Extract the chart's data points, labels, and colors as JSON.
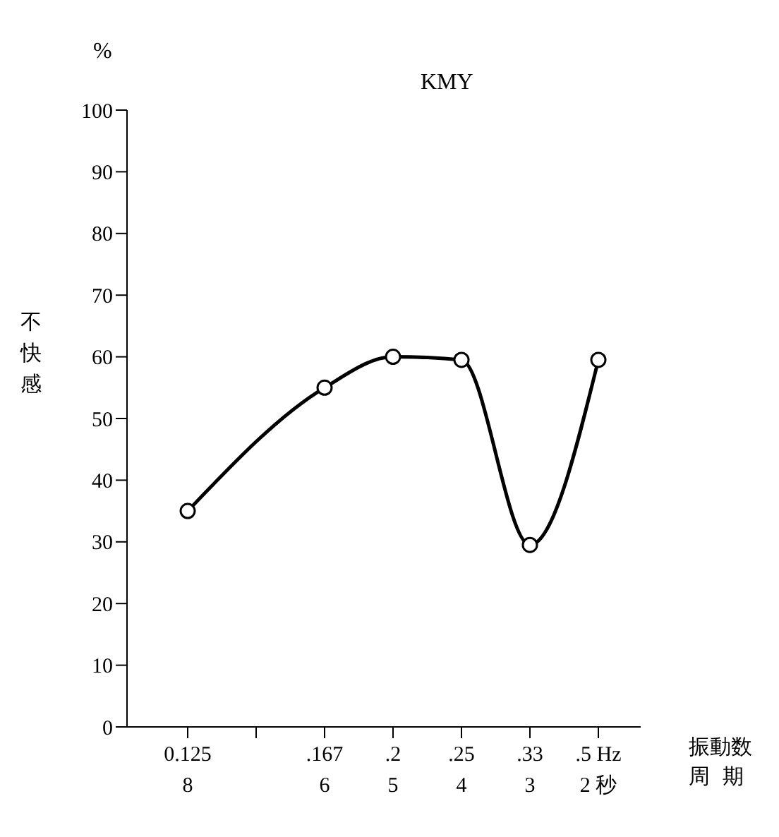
{
  "chart_data": {
    "type": "line",
    "title": "KMY",
    "xlabel": "振動数",
    "ylabel": "不快感",
    "annotations": [
      "%",
      "周期"
    ],
    "categories": [
      "0.125\n8",
      null,
      ".167\n6",
      ".2\n5",
      ".25\n4",
      ".33\n3",
      ".5 Hz\n2 秒"
    ],
    "series": [
      {
        "color": "#000000",
        "values": [
          35,
          null,
          55,
          60,
          59.5,
          29.5,
          59.5
        ]
      }
    ],
    "ylim": [
      0,
      100
    ],
    "yticks": [
      0,
      10,
      20,
      30,
      40,
      50,
      60,
      70,
      80,
      90,
      100
    ],
    "grid": false,
    "marker": "circle",
    "line_style": "solid"
  }
}
